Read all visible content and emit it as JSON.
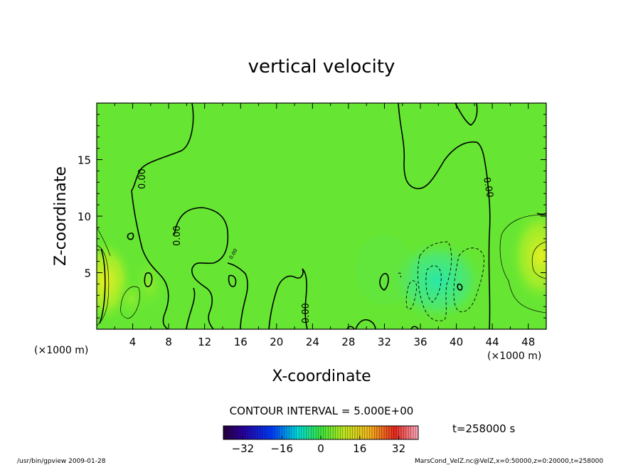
{
  "chart_data": {
    "type": "heatmap",
    "title": "vertical velocity",
    "xlabel": "X-coordinate",
    "ylabel": "Z-coordinate",
    "x_unit_left": "(×1000 m)",
    "x_unit_right": "(×1000 m)",
    "xlim": [
      0,
      50
    ],
    "ylim": [
      0,
      20
    ],
    "x_ticks": [
      4,
      8,
      12,
      16,
      20,
      24,
      28,
      32,
      36,
      40,
      44,
      48
    ],
    "y_ticks": [
      5,
      10,
      15
    ],
    "contour_interval_text": "CONTOUR INTERVAL = 5.000E+00",
    "contour_labels": [
      "0.00",
      "0.00",
      "0.00",
      "0.00",
      "0.00"
    ],
    "colorbar": {
      "range": [
        -40,
        40
      ],
      "tick_values": [
        -32,
        -16,
        0,
        16,
        32
      ],
      "tick_labels": [
        "−32",
        "−16",
        "0",
        "16",
        "32"
      ]
    },
    "time_label": "t=258000 s"
  },
  "footer": {
    "left": "/usr/bin/gpview  2009-01-28",
    "right": "MarsCond_VelZ.nc@VelZ,x=0:50000,z=0:20000,t=258000"
  }
}
